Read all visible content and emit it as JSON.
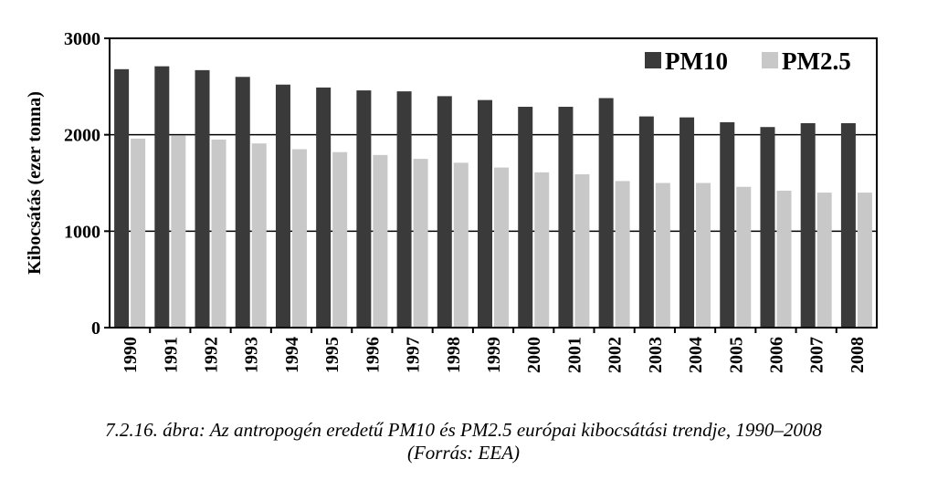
{
  "chart_data": {
    "type": "bar",
    "ylabel": "Kibocsátás (ezer tonna)",
    "xlabel": "",
    "ylim": [
      0,
      3000
    ],
    "yticks": [
      0,
      1000,
      2000,
      3000
    ],
    "grid": true,
    "legend_position": "top-right",
    "categories": [
      "1990",
      "1991",
      "1992",
      "1993",
      "1994",
      "1995",
      "1996",
      "1997",
      "1998",
      "1999",
      "2000",
      "2001",
      "2002",
      "2003",
      "2004",
      "2005",
      "2006",
      "2007",
      "2008"
    ],
    "series": [
      {
        "name": "PM10",
        "color": "#3a3a3a",
        "values": [
          2680,
          2710,
          2670,
          2600,
          2520,
          2490,
          2460,
          2450,
          2400,
          2360,
          2290,
          2290,
          2380,
          2190,
          2180,
          2130,
          2080,
          2120,
          2120
        ]
      },
      {
        "name": "PM2.5",
        "color": "#c8c8c8",
        "values": [
          1960,
          1990,
          1950,
          1910,
          1850,
          1820,
          1790,
          1750,
          1710,
          1660,
          1610,
          1590,
          1520,
          1500,
          1500,
          1460,
          1420,
          1400,
          1400
        ]
      }
    ]
  },
  "caption": {
    "line1": "7.2.16. ábra: Az antropogén eredetű PM10 és PM2.5 európai kibocsátási trendje, 1990–2008",
    "line2": "(Forrás: EEA)"
  }
}
